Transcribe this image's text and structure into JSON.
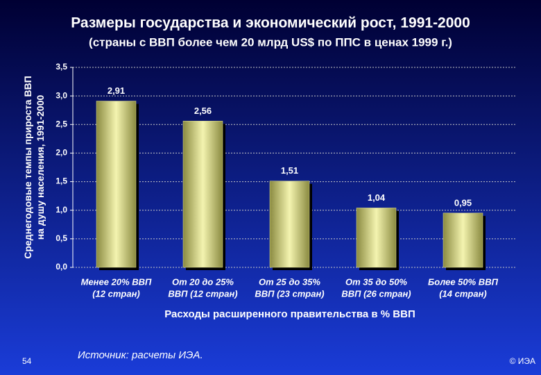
{
  "chart_data": {
    "type": "bar",
    "title": "Размеры государства и экономический рост, 1991-2000",
    "subtitle": "(страны с ВВП более чем 20 млрд US$ по ППС в ценах 1999 г.)",
    "y_label": "Среднегодовые темпы прироста ВВП\nна душу населения, 1991-2000",
    "x_label": "Расходы расширенного правительства в % ВВП",
    "categories": [
      "Менее 20% ВВП\n(12 стран)",
      "От 20 до 25%\nВВП (12 стран)",
      "От 25 до 35%\nВВП (23 стран)",
      "От 35 до 50%\nВВП (26 стран)",
      "Более 50% ВВП\n(14 стран)"
    ],
    "values": [
      2.91,
      2.56,
      1.51,
      1.04,
      0.95
    ],
    "value_labels": [
      "2,91",
      "2,56",
      "1,51",
      "1,04",
      "0,95"
    ],
    "color": "#e8e890",
    "ylim": [
      0,
      3.5
    ],
    "yticks": [
      {
        "value": 0,
        "label": "0,0"
      },
      {
        "value": 0.5,
        "label": "0,5"
      },
      {
        "value": 1,
        "label": "1,0"
      },
      {
        "value": 1.5,
        "label": "1,5"
      },
      {
        "value": 2,
        "label": "2,0"
      },
      {
        "value": 2.5,
        "label": "2,5"
      },
      {
        "value": 3,
        "label": "3,0"
      },
      {
        "value": 3.5,
        "label": "3,5"
      }
    ],
    "grid": true
  },
  "slide": {
    "page_number": "54",
    "source": "Источник:  расчеты ИЭА.",
    "copyright": "© ИЭА"
  }
}
